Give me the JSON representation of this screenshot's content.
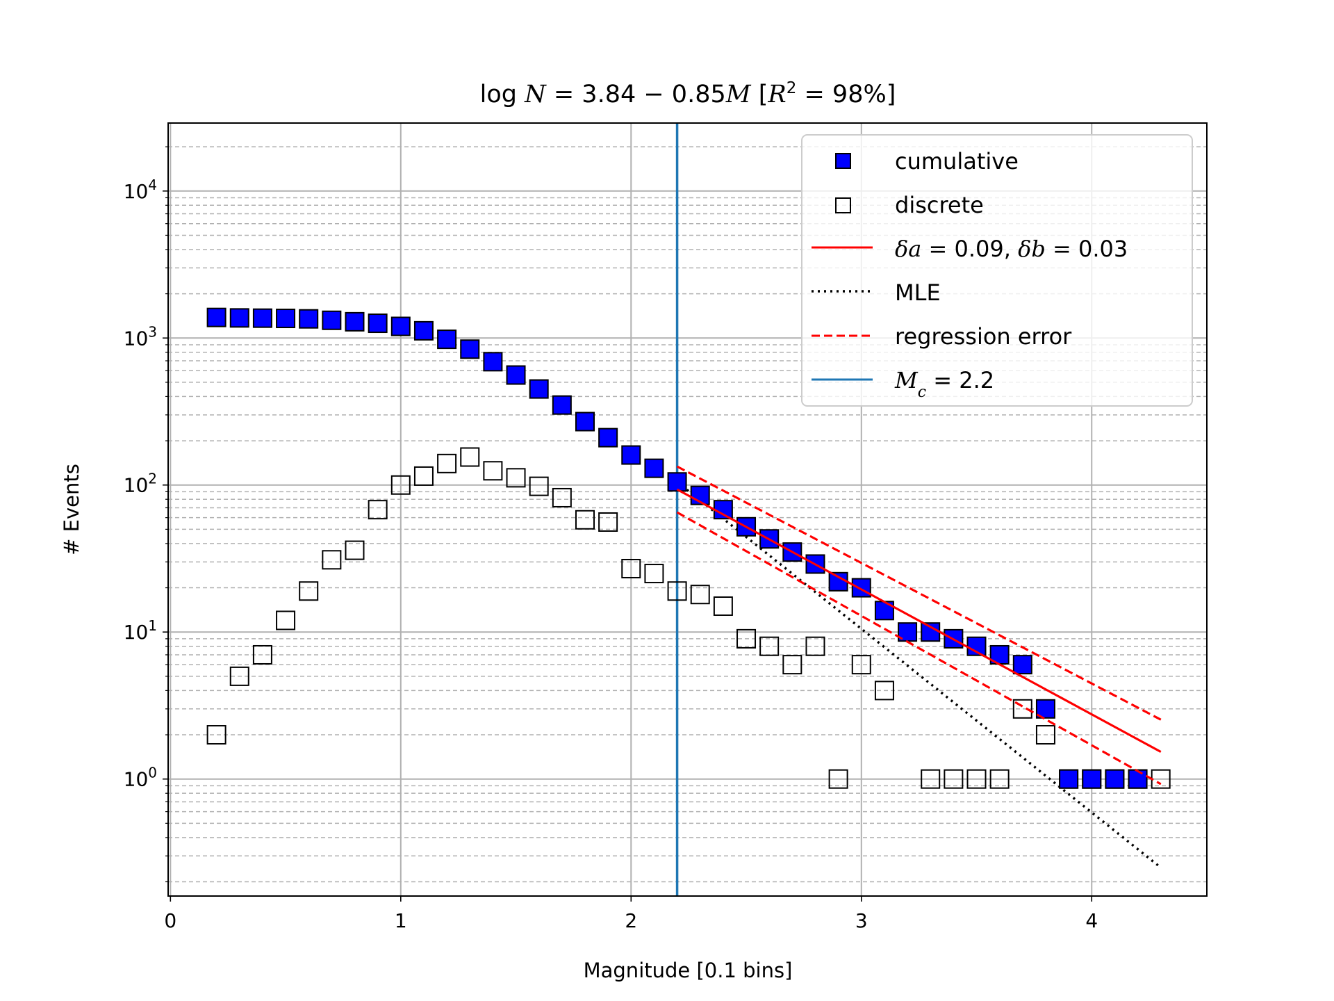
{
  "chart_data": {
    "type": "scatter",
    "title": "log N = 3.84 − 0.85M [R² = 98%]",
    "xlabel": "Magnitude [0.1 bins]",
    "ylabel": "# Events",
    "yscale": "log",
    "xlim": [
      -0.01,
      4.5
    ],
    "ylim": [
      0.16,
      29000
    ],
    "x_ticks": [
      0,
      1,
      2,
      3,
      4
    ],
    "y_ticks": [
      1,
      10,
      100,
      1000,
      10000
    ],
    "grid": true,
    "legend_position": "upper right",
    "series": [
      {
        "name": "cumulative",
        "style": "square filled",
        "color": "#0000ff",
        "x": [
          0.2,
          0.3,
          0.4,
          0.5,
          0.6,
          0.7,
          0.8,
          0.9,
          1.0,
          1.1,
          1.2,
          1.3,
          1.4,
          1.5,
          1.6,
          1.7,
          1.8,
          1.9,
          2.0,
          2.1,
          2.2,
          2.3,
          2.4,
          2.5,
          2.6,
          2.7,
          2.8,
          2.9,
          3.0,
          3.1,
          3.2,
          3.3,
          3.4,
          3.5,
          3.6,
          3.7,
          3.8,
          3.9,
          4.0,
          4.1,
          4.2
        ],
        "y": [
          1380,
          1370,
          1365,
          1360,
          1350,
          1320,
          1290,
          1260,
          1200,
          1120,
          980,
          840,
          690,
          560,
          450,
          350,
          270,
          210,
          160,
          130,
          105,
          85,
          68,
          52,
          43,
          35,
          29,
          22,
          20,
          14,
          10,
          10,
          9,
          8,
          7,
          6,
          3,
          1,
          1,
          1,
          1
        ]
      },
      {
        "name": "discrete",
        "style": "square open",
        "color": "#000000",
        "x": [
          0.2,
          0.3,
          0.4,
          0.5,
          0.6,
          0.7,
          0.8,
          0.9,
          1.0,
          1.1,
          1.2,
          1.3,
          1.4,
          1.5,
          1.6,
          1.7,
          1.8,
          1.9,
          2.0,
          2.1,
          2.2,
          2.3,
          2.4,
          2.5,
          2.6,
          2.7,
          2.8,
          2.9,
          3.0,
          3.1,
          3.3,
          3.4,
          3.5,
          3.6,
          3.7,
          3.8,
          3.9,
          4.0,
          4.1,
          4.2,
          4.3
        ],
        "y": [
          2,
          5,
          7,
          12,
          19,
          31,
          36,
          68,
          100,
          115,
          140,
          155,
          125,
          112,
          98,
          82,
          58,
          56,
          27,
          25,
          19,
          18,
          15,
          9,
          8,
          6,
          8,
          1,
          6,
          4,
          1,
          1,
          1,
          1,
          3,
          2,
          1,
          1,
          1,
          1,
          1
        ]
      },
      {
        "name": "δa = 0.09, δb = 0.03",
        "style": "solid line",
        "color": "#ff0000",
        "intercept": 3.84,
        "slope": -0.85,
        "x": [
          2.2,
          4.3
        ]
      },
      {
        "name": "MLE",
        "style": "dotted line",
        "color": "#000000",
        "x": [
          2.2,
          4.3
        ],
        "y": [
          105,
          0.25
        ]
      },
      {
        "name": "regression error",
        "style": "dashed line",
        "color": "#ff0000",
        "upper": {
          "intercept": 3.93,
          "slope": -0.82
        },
        "lower": {
          "intercept": 3.75,
          "slope": -0.88
        },
        "x": [
          2.2,
          4.3
        ]
      },
      {
        "name": "Mc = 2.2",
        "style": "vertical line",
        "color": "#1f77b4",
        "x": 2.2
      }
    ]
  }
}
